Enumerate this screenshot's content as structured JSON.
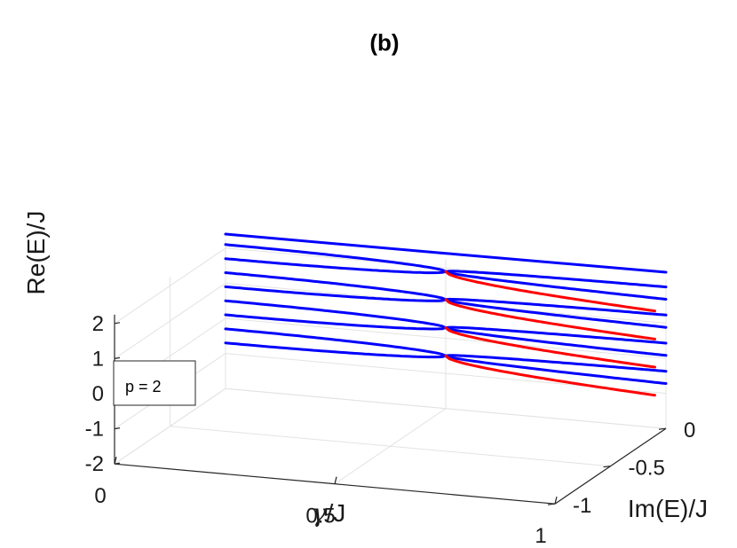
{
  "chart_data": {
    "type": "line",
    "title": "(b)",
    "xlabel": {
      "symbol": "γ",
      "unit": "/J"
    },
    "ylabel": "Im(E)/J",
    "zlabel": "Re(E)/J",
    "xticks": [
      "0",
      "0.5",
      "1"
    ],
    "yticks": [
      "-1",
      "-0.5",
      "0"
    ],
    "zticks": [
      "-2",
      "-1",
      "0",
      "1",
      "2"
    ],
    "xlim": [
      0,
      1
    ],
    "ylim": [
      -1,
      0
    ],
    "zlim": [
      -2,
      2
    ],
    "grid": true,
    "annotation": "p = 2",
    "gamma_exceptional": 0.5,
    "levels": [
      -0.7,
      -0.3,
      0.1,
      0.5,
      0.9,
      1.3,
      1.7,
      2.1
    ],
    "series": [
      {
        "color": "#0000ff",
        "values_note": "Pairs of levels coalesce as γ grows; beyond γ≈0.5 the real parts of each pair stay coalesced while the imaginary part splits (one branch stays near Im(E)=0, the other goes negative)."
      },
      {
        "color": "#ff0000",
        "values_note": "Branch with decaying Im(E) after the exceptional point"
      }
    ],
    "colors": {
      "blue": "#0000ff",
      "red": "#ff0000",
      "grid": "#e3e3e3",
      "axis": "#262626"
    }
  }
}
